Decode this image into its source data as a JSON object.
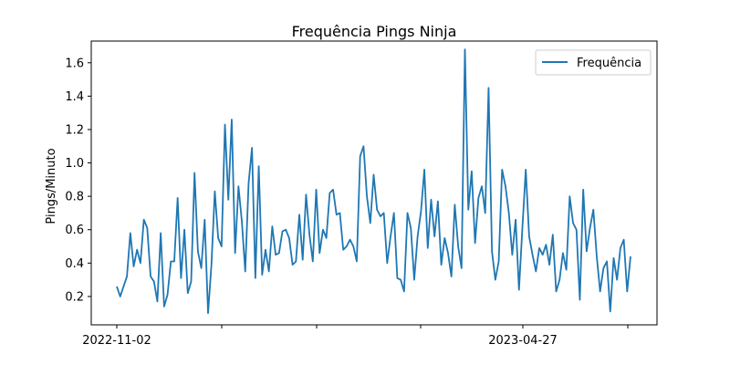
{
  "chart_data": {
    "type": "line",
    "title": "Frequência Pings Ninja",
    "xlabel": "",
    "ylabel": "Pings/Minuto",
    "ylim": [
      0.03,
      1.73
    ],
    "yticks": [
      0.2,
      0.4,
      0.6,
      0.8,
      1.0,
      1.2,
      1.4,
      1.6
    ],
    "ytick_labels": [
      "0.2",
      "0.4",
      "0.6",
      "0.8",
      "1.0",
      "1.2",
      "1.4",
      "1.6"
    ],
    "xtick_labels": [
      "2022-11-02",
      "",
      "",
      "",
      "2023-04-27",
      ""
    ],
    "legend": {
      "placement": "top-right",
      "entries": [
        "Frequência"
      ]
    },
    "grid": false,
    "series": [
      {
        "name": "Frequência",
        "color": "#1f77b4",
        "values": [
          0.26,
          0.2,
          0.26,
          0.32,
          0.58,
          0.38,
          0.48,
          0.4,
          0.66,
          0.61,
          0.32,
          0.29,
          0.17,
          0.58,
          0.14,
          0.21,
          0.41,
          0.41,
          0.79,
          0.31,
          0.6,
          0.22,
          0.29,
          0.94,
          0.47,
          0.37,
          0.66,
          0.1,
          0.39,
          0.83,
          0.55,
          0.5,
          1.23,
          0.78,
          1.26,
          0.46,
          0.86,
          0.65,
          0.35,
          0.88,
          1.09,
          0.31,
          0.98,
          0.33,
          0.48,
          0.35,
          0.62,
          0.45,
          0.46,
          0.59,
          0.6,
          0.55,
          0.39,
          0.41,
          0.69,
          0.42,
          0.81,
          0.57,
          0.41,
          0.84,
          0.46,
          0.6,
          0.55,
          0.82,
          0.84,
          0.69,
          0.7,
          0.48,
          0.5,
          0.54,
          0.5,
          0.41,
          1.04,
          1.1,
          0.8,
          0.64,
          0.93,
          0.72,
          0.68,
          0.7,
          0.4,
          0.56,
          0.7,
          0.31,
          0.3,
          0.23,
          0.7,
          0.61,
          0.3,
          0.56,
          0.71,
          0.96,
          0.49,
          0.78,
          0.56,
          0.77,
          0.39,
          0.55,
          0.46,
          0.32,
          0.75,
          0.5,
          0.37,
          1.68,
          0.72,
          0.95,
          0.52,
          0.79,
          0.86,
          0.7,
          1.45,
          0.47,
          0.3,
          0.41,
          0.96,
          0.86,
          0.7,
          0.45,
          0.66,
          0.24,
          0.61,
          0.96,
          0.56,
          0.45,
          0.35,
          0.49,
          0.45,
          0.51,
          0.39,
          0.57,
          0.23,
          0.3,
          0.46,
          0.36,
          0.8,
          0.64,
          0.6,
          0.18,
          0.84,
          0.47,
          0.61,
          0.72,
          0.44,
          0.23,
          0.37,
          0.41,
          0.11,
          0.43,
          0.3,
          0.49,
          0.54,
          0.23,
          0.44
        ]
      }
    ]
  }
}
